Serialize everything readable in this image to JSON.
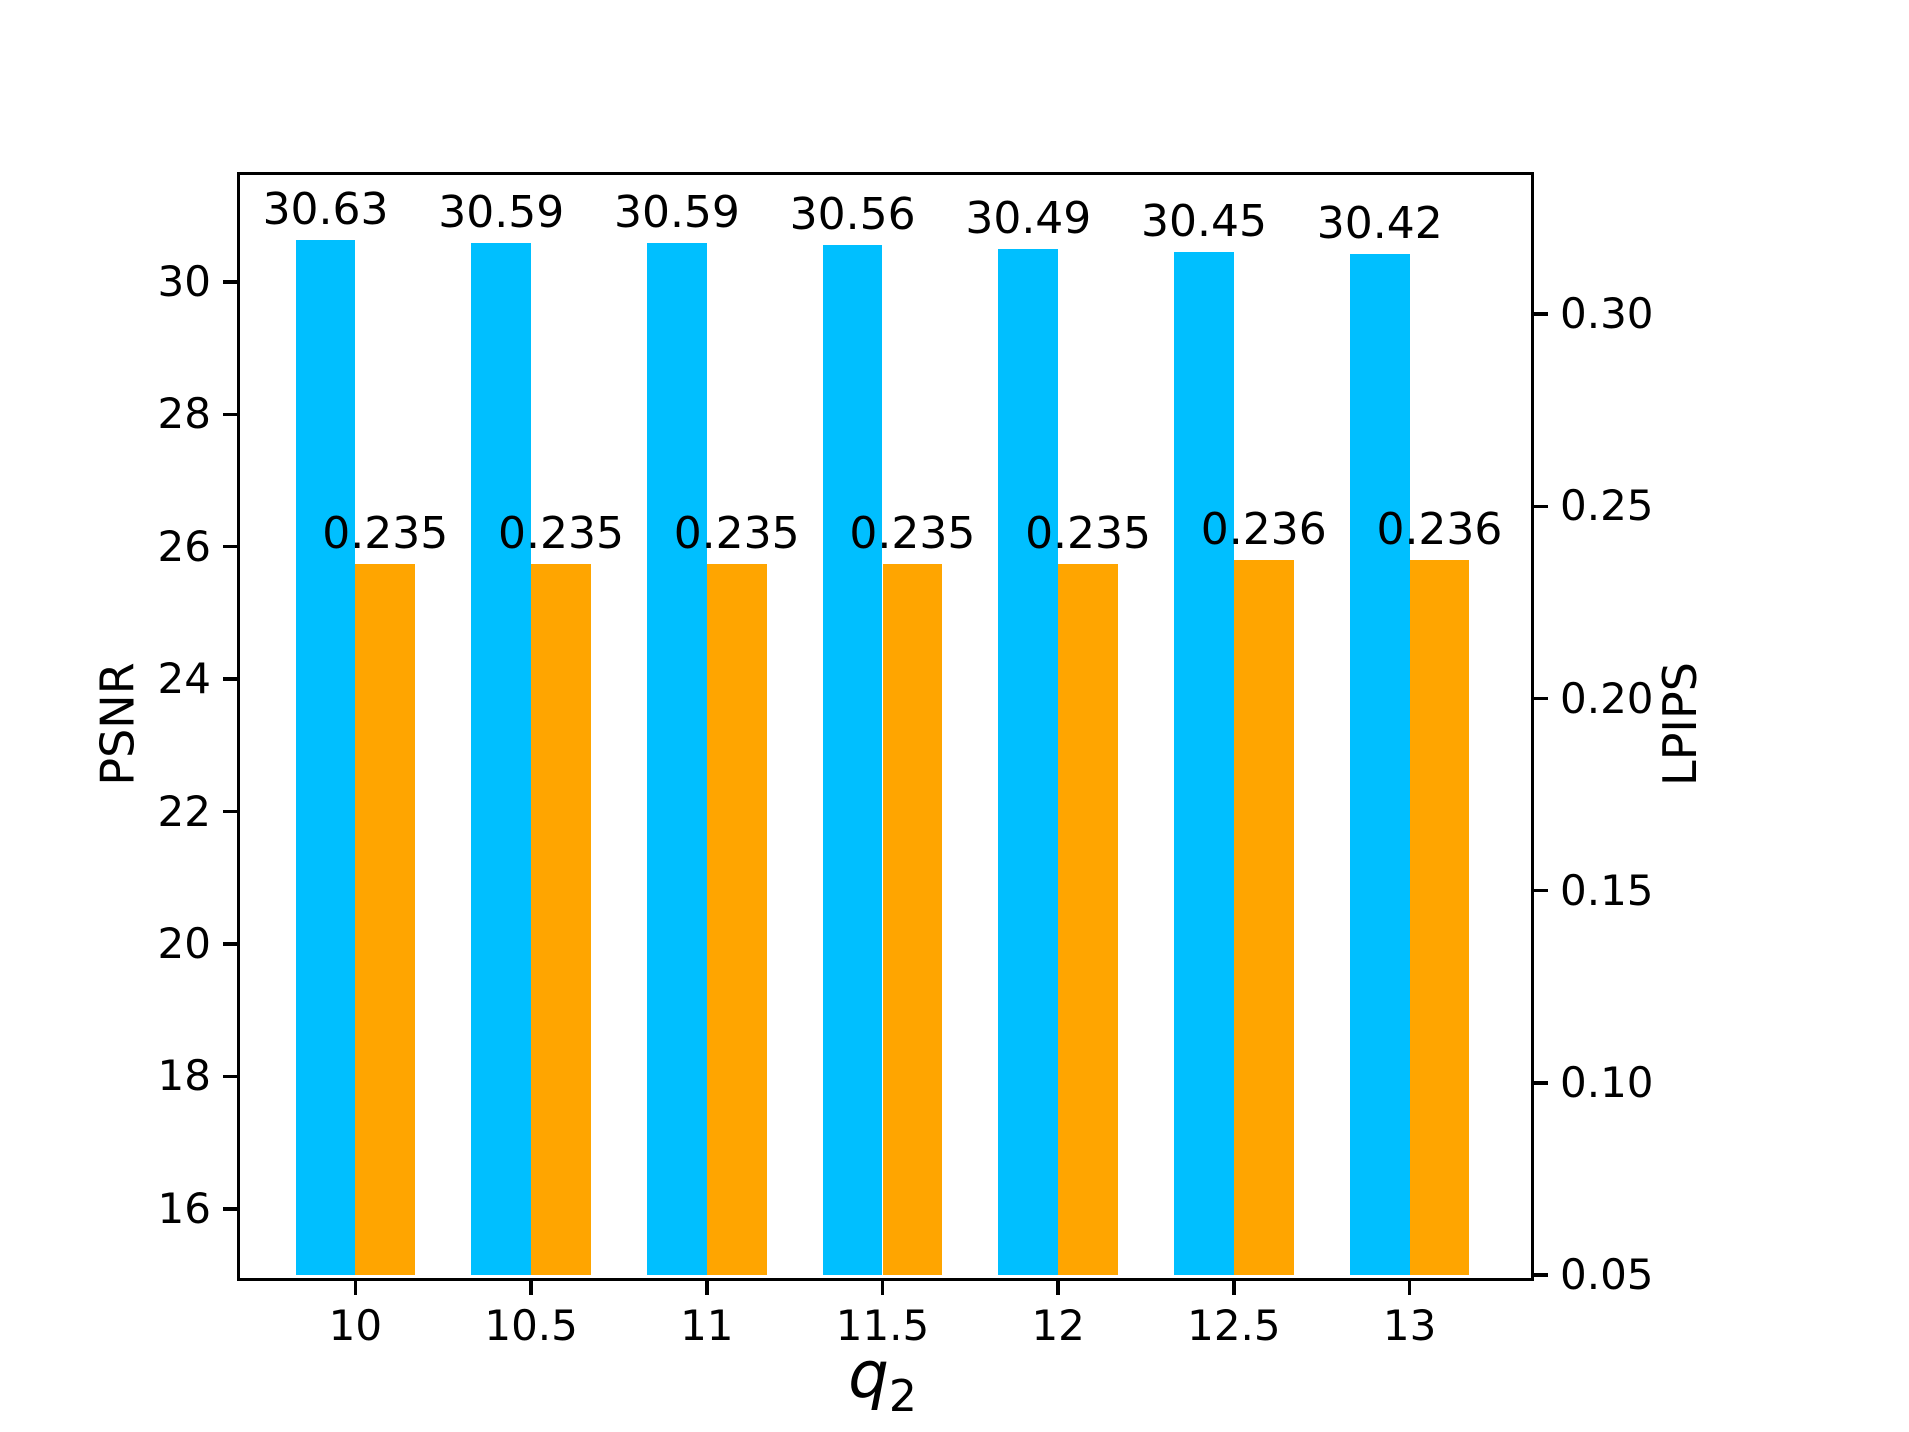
{
  "figure": {
    "background": "#ffffff",
    "text_color": "#000000"
  },
  "chart_data": {
    "type": "bar",
    "title": "",
    "categories": [
      10,
      10.5,
      11,
      11.5,
      12,
      12.5,
      13
    ],
    "series": [
      {
        "name": "PSNR",
        "axis": "left",
        "color": "#00BFFF",
        "values": [
          30.63,
          30.59,
          30.59,
          30.56,
          30.49,
          30.45,
          30.42
        ],
        "value_labels": [
          "30.63",
          "30.59",
          "30.59",
          "30.56",
          "30.49",
          "30.45",
          "30.42"
        ]
      },
      {
        "name": "LPIPS",
        "axis": "right",
        "color": "#FFA500",
        "values": [
          0.235,
          0.235,
          0.235,
          0.235,
          0.235,
          0.236,
          0.236
        ],
        "value_labels": [
          "0.235",
          "0.235",
          "0.235",
          "0.235",
          "0.235",
          "0.236",
          "0.236"
        ]
      }
    ],
    "x_axis": {
      "label_base": "q",
      "label_sub": "2",
      "tick_labels": [
        "10",
        "10.5",
        "11",
        "11.5",
        "12",
        "12.5",
        "13"
      ],
      "tick_values": [
        10,
        10.5,
        11,
        11.5,
        12,
        12.5,
        13
      ],
      "range": [
        9.663,
        13.337
      ],
      "bar_width_units": 0.17
    },
    "left_axis": {
      "label": "PSNR",
      "tick_labels": [
        "16",
        "18",
        "20",
        "22",
        "24",
        "26",
        "28",
        "30"
      ],
      "tick_values": [
        16,
        18,
        20,
        22,
        24,
        26,
        28,
        30
      ],
      "range": [
        15,
        31.66
      ]
    },
    "right_axis": {
      "label": "LPIPS",
      "tick_labels": [
        "0.05",
        "0.10",
        "0.15",
        "0.20",
        "0.25",
        "0.30"
      ],
      "tick_values": [
        0.05,
        0.1,
        0.15,
        0.2,
        0.25,
        0.3
      ],
      "range": [
        0.05,
        0.337
      ]
    },
    "grid": false,
    "legend": "none"
  }
}
